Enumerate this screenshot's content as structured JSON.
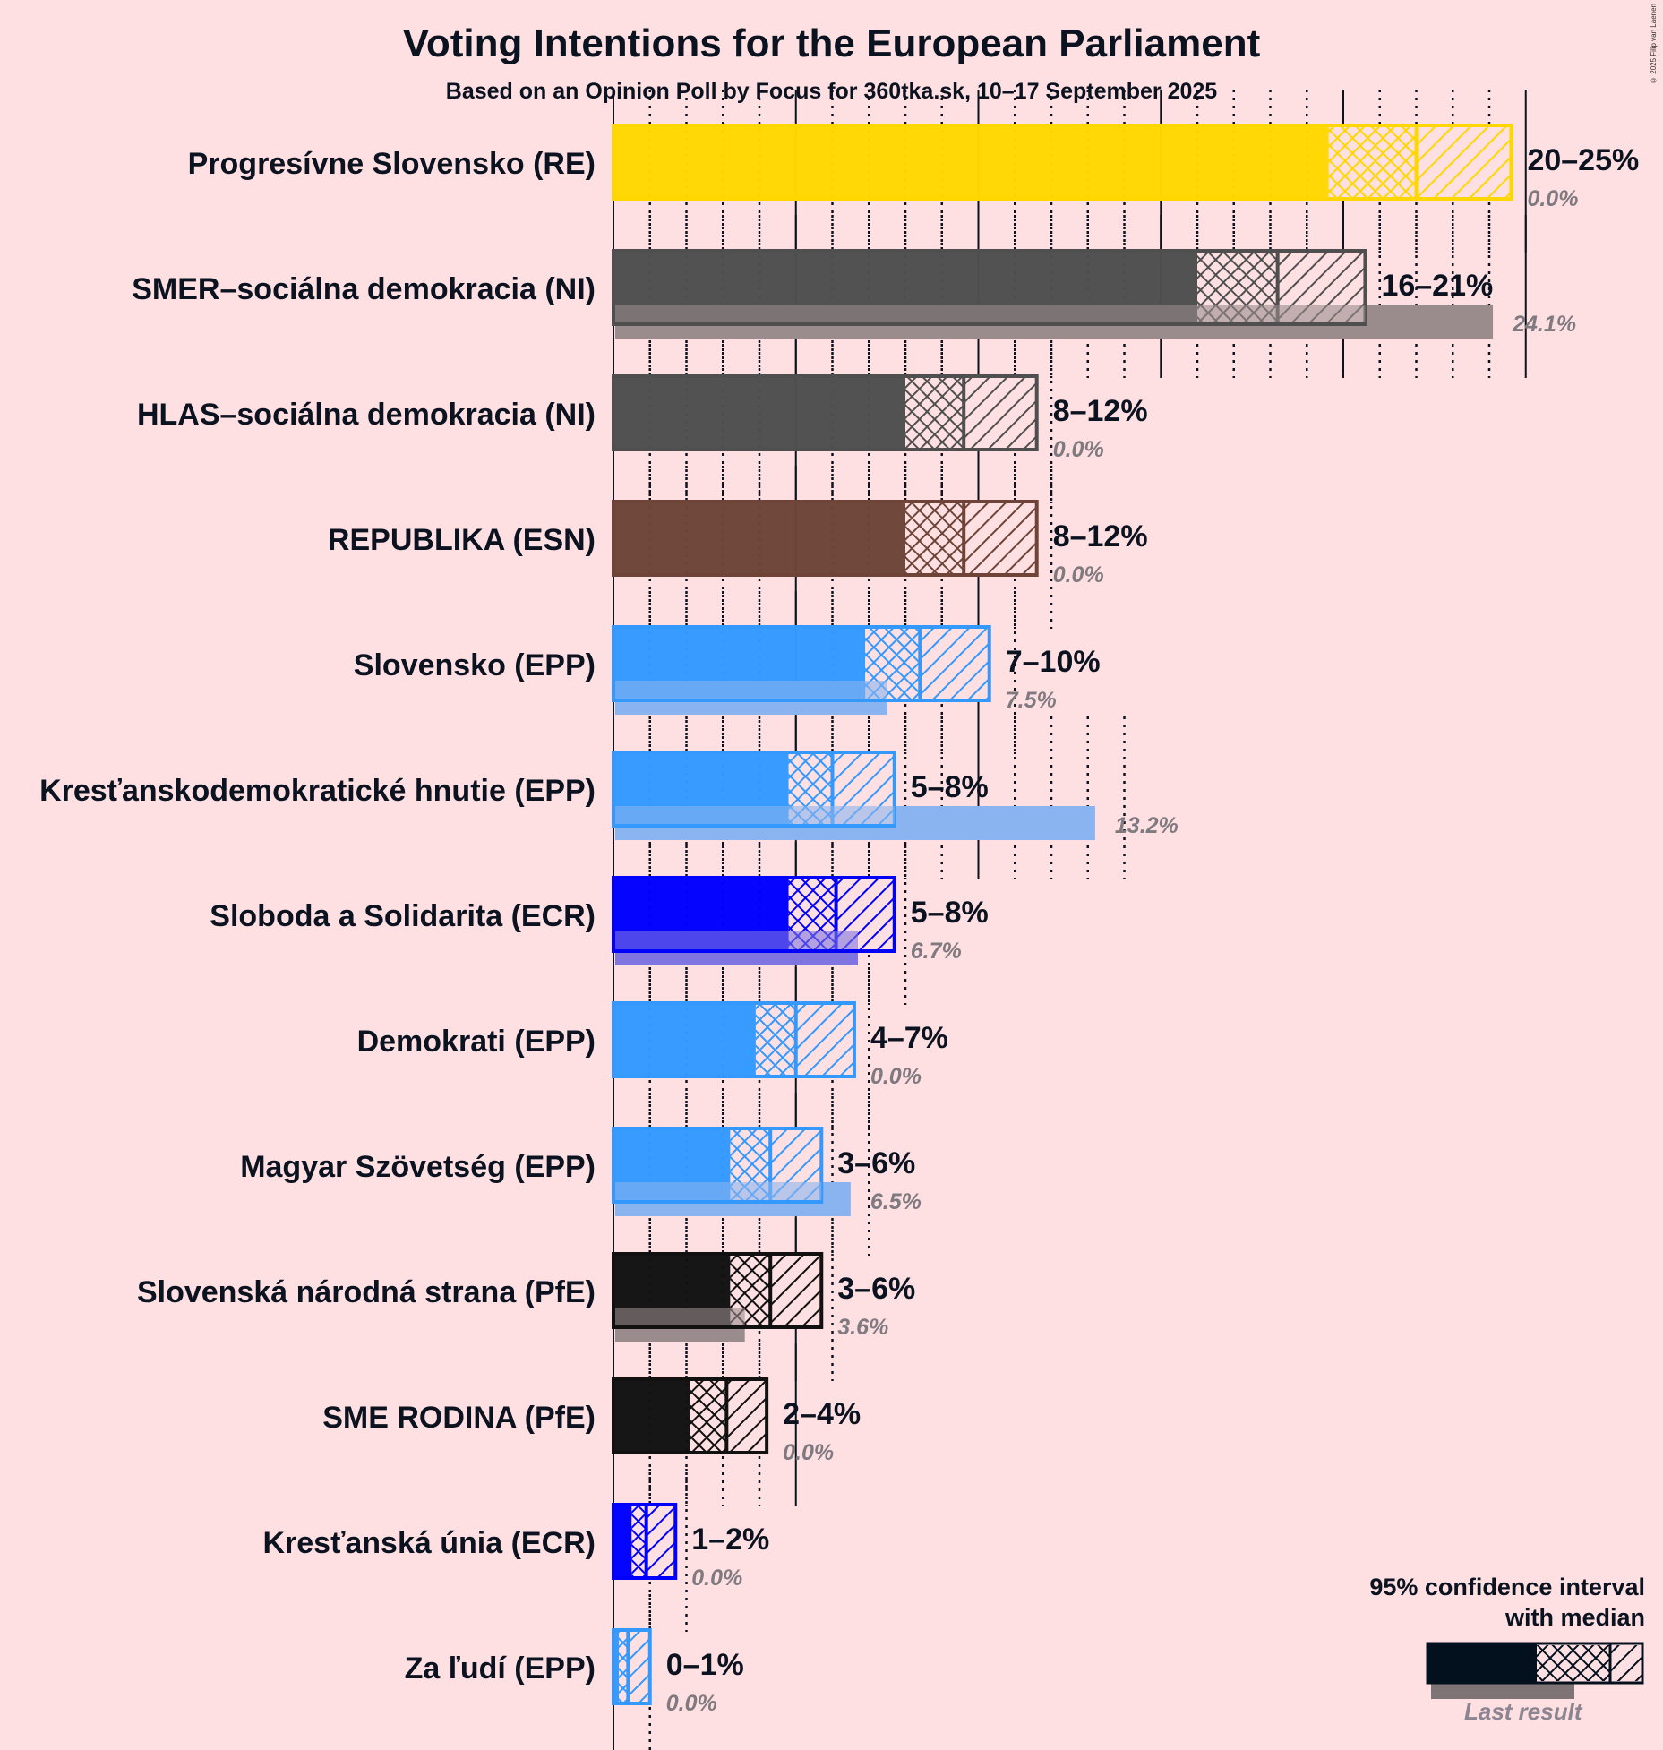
{
  "chart_data": {
    "type": "bar",
    "orientation": "horizontal",
    "title": "Voting Intentions for the European Parliament",
    "subtitle": "Based on an Opinion Poll by Focus for 360tka.sk, 10–17 September 2025",
    "copyright": "© 2025 Filip van Laenen",
    "xlim": [
      0,
      25
    ],
    "grid": {
      "minor_step": 1,
      "major_step": 5,
      "style": "dotted minor, solid major"
    },
    "legend": {
      "title_line1": "95% confidence interval",
      "title_line2": "with median",
      "last_result_label": "Last result",
      "placement": "bottom-right"
    },
    "parties": [
      {
        "name": "Progresívne Slovensko (RE)",
        "color": "#ffd700",
        "ci_low": 19.6,
        "median": 22.0,
        "ci_high": 24.6,
        "range_label": "20–25%",
        "last_result": 0.0,
        "last_label": "0.0%"
      },
      {
        "name": "SMER–sociálna demokracia (NI)",
        "color": "#4f4f4f",
        "ci_low": 16.0,
        "median": 18.2,
        "ci_high": 20.6,
        "range_label": "16–21%",
        "last_result": 24.1,
        "last_label": "24.1%"
      },
      {
        "name": "HLAS–sociálna demokracia (NI)",
        "color": "#4f4f4f",
        "ci_low": 8.0,
        "median": 9.6,
        "ci_high": 11.6,
        "range_label": "8–12%",
        "last_result": 0.0,
        "last_label": "0.0%"
      },
      {
        "name": "REPUBLIKA (ESN)",
        "color": "#6e4438",
        "ci_low": 8.0,
        "median": 9.6,
        "ci_high": 11.6,
        "range_label": "8–12%",
        "last_result": 0.0,
        "last_label": "0.0%"
      },
      {
        "name": "Slovensko (EPP)",
        "color": "#3399ff",
        "ci_low": 6.9,
        "median": 8.4,
        "ci_high": 10.3,
        "range_label": "7–10%",
        "last_result": 7.5,
        "last_label": "7.5%"
      },
      {
        "name": "Kresťanskodemokratické hnutie (EPP)",
        "color": "#3399ff",
        "ci_low": 4.8,
        "median": 6.0,
        "ci_high": 7.7,
        "range_label": "5–8%",
        "last_result": 13.2,
        "last_label": "13.2%"
      },
      {
        "name": "Sloboda a Solidarita (ECR)",
        "color": "#0000ff",
        "ci_low": 4.8,
        "median": 6.1,
        "ci_high": 7.7,
        "range_label": "5–8%",
        "last_result": 6.7,
        "last_label": "6.7%"
      },
      {
        "name": "Demokrati (EPP)",
        "color": "#3399ff",
        "ci_low": 3.9,
        "median": 5.0,
        "ci_high": 6.6,
        "range_label": "4–7%",
        "last_result": 0.0,
        "last_label": "0.0%"
      },
      {
        "name": "Magyar Szövetség (EPP)",
        "color": "#3399ff",
        "ci_low": 3.2,
        "median": 4.3,
        "ci_high": 5.7,
        "range_label": "3–6%",
        "last_result": 6.5,
        "last_label": "6.5%"
      },
      {
        "name": "Slovenská národná strana (PfE)",
        "color": "#111111",
        "ci_low": 3.2,
        "median": 4.3,
        "ci_high": 5.7,
        "range_label": "3–6%",
        "last_result": 3.6,
        "last_label": "3.6%"
      },
      {
        "name": "SME RODINA (PfE)",
        "color": "#111111",
        "ci_low": 2.1,
        "median": 3.1,
        "ci_high": 4.2,
        "range_label": "2–4%",
        "last_result": 0.0,
        "last_label": "0.0%"
      },
      {
        "name": "Kresťanská únia (ECR)",
        "color": "#0000ff",
        "ci_low": 0.5,
        "median": 0.9,
        "ci_high": 1.7,
        "range_label": "1–2%",
        "last_result": 0.0,
        "last_label": "0.0%"
      },
      {
        "name": "Za ľudí (EPP)",
        "color": "#3399ff",
        "ci_low": 0.15,
        "median": 0.4,
        "ci_high": 1.0,
        "range_label": "0–1%",
        "last_result": 0.0,
        "last_label": "0.0%"
      }
    ]
  },
  "colors": {
    "background": "#ffe0e2",
    "text": "#0b1220",
    "last_result_gray": "#7f7475",
    "last_label_gray": "#7f7a80",
    "legend_bar": "#03101e"
  }
}
